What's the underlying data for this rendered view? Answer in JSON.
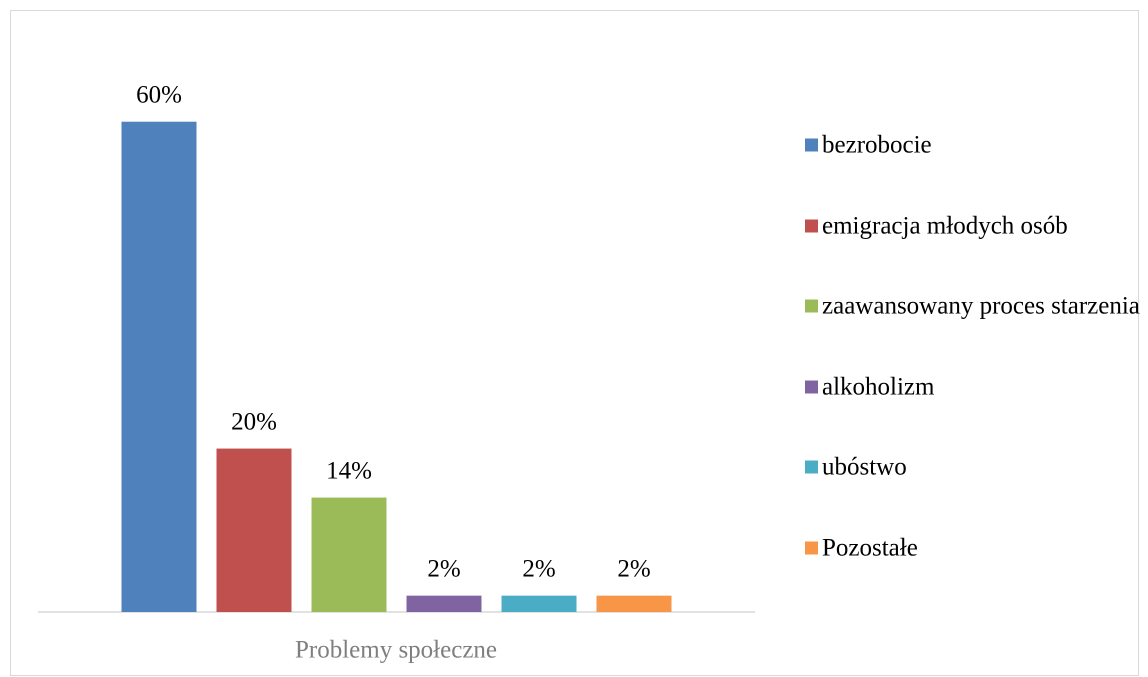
{
  "chart_data": {
    "type": "bar",
    "categories": [
      "Problemy społeczne"
    ],
    "ylim": [
      0,
      70
    ],
    "series": [
      {
        "name": "bezrobocie",
        "color": "#4f81bd",
        "values": [
          60
        ],
        "value_labels": [
          "60%"
        ]
      },
      {
        "name": "emigracja młodych osób",
        "color": "#c0504d",
        "values": [
          20
        ],
        "value_labels": [
          "20%"
        ]
      },
      {
        "name": "zaawansowany proces starzenia",
        "color": "#9bbb59",
        "values": [
          14
        ],
        "value_labels": [
          "14%"
        ]
      },
      {
        "name": "alkoholizm",
        "color": "#8064a2",
        "values": [
          2
        ],
        "value_labels": [
          "2%"
        ]
      },
      {
        "name": "ubóstwo",
        "color": "#4bacc6",
        "values": [
          2
        ],
        "value_labels": [
          "2%"
        ]
      },
      {
        "name": "Pozostałe",
        "color": "#f79646",
        "values": [
          2
        ],
        "value_labels": [
          "2%"
        ]
      }
    ],
    "legend": "right"
  }
}
